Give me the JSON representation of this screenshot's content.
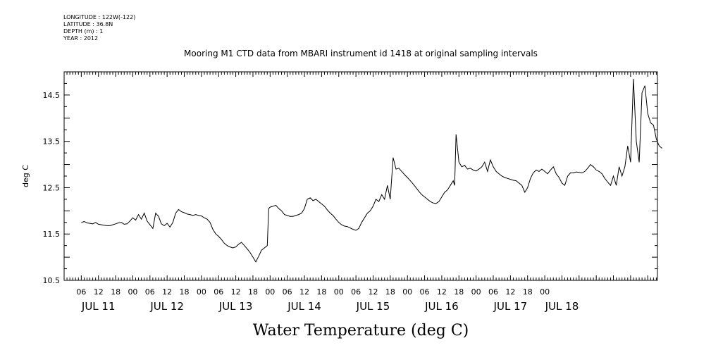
{
  "header": {
    "meta": [
      "LONGITUDE : 122W(-122)",
      "LATITUDE : 36.8N",
      "DEPTH (m) : 1",
      "YEAR : 2012"
    ]
  },
  "chart_data": {
    "type": "line",
    "title": "Mooring M1 CTD data from MBARI instrument id 1418 at original sampling intervals",
    "xlabel": "Water Temperature (deg C)",
    "ylabel": "deg C",
    "ylim": [
      10.5,
      15.0
    ],
    "yticks": [
      "10.5",
      "11.5",
      "12.5",
      "13.5",
      "14.5"
    ],
    "xlim_hours": [
      0,
      165
    ],
    "hour_tick_labels": [
      "06",
      "12",
      "18",
      "00",
      "06",
      "12",
      "18",
      "00",
      "06",
      "12",
      "18",
      "00",
      "06",
      "12",
      "18",
      "00",
      "06",
      "12",
      "18",
      "00",
      "06",
      "12",
      "18",
      "00",
      "06",
      "12",
      "18",
      "00"
    ],
    "day_labels": [
      "JUL 11",
      "JUL 12",
      "JUL 13",
      "JUL 14",
      "JUL 15",
      "JUL 16",
      "JUL 17",
      "JUL 18"
    ],
    "grid": false,
    "series": [
      {
        "color": "#000000",
        "points": [
          [
            0,
            11.75
          ],
          [
            1,
            11.77
          ],
          [
            2,
            11.74
          ],
          [
            3,
            11.73
          ],
          [
            4,
            11.72
          ],
          [
            5,
            11.75
          ],
          [
            6,
            11.71
          ],
          [
            7,
            11.7
          ],
          [
            8,
            11.69
          ],
          [
            9,
            11.68
          ],
          [
            10,
            11.68
          ],
          [
            11,
            11.7
          ],
          [
            12,
            11.72
          ],
          [
            13,
            11.74
          ],
          [
            14,
            11.75
          ],
          [
            15,
            11.71
          ],
          [
            16,
            11.72
          ],
          [
            17,
            11.78
          ],
          [
            18,
            11.85
          ],
          [
            19,
            11.8
          ],
          [
            20,
            11.92
          ],
          [
            21,
            11.82
          ],
          [
            22,
            11.95
          ],
          [
            23,
            11.78
          ],
          [
            24,
            11.7
          ],
          [
            25,
            11.62
          ],
          [
            26,
            11.95
          ],
          [
            27,
            11.88
          ],
          [
            28,
            11.72
          ],
          [
            29,
            11.68
          ],
          [
            30,
            11.73
          ],
          [
            31,
            11.65
          ],
          [
            32,
            11.75
          ],
          [
            33,
            11.95
          ],
          [
            34,
            12.03
          ],
          [
            35,
            11.98
          ],
          [
            36,
            11.96
          ],
          [
            37,
            11.93
          ],
          [
            38,
            11.92
          ],
          [
            39,
            11.9
          ],
          [
            40,
            11.92
          ],
          [
            41,
            11.9
          ],
          [
            42,
            11.89
          ],
          [
            43,
            11.85
          ],
          [
            44,
            11.82
          ],
          [
            45,
            11.75
          ],
          [
            46,
            11.6
          ],
          [
            47,
            11.5
          ],
          [
            48,
            11.45
          ],
          [
            49,
            11.38
          ],
          [
            50,
            11.3
          ],
          [
            51,
            11.25
          ],
          [
            52,
            11.22
          ],
          [
            53,
            11.2
          ],
          [
            54,
            11.22
          ],
          [
            55,
            11.28
          ],
          [
            56,
            11.32
          ],
          [
            57,
            11.25
          ],
          [
            58,
            11.18
          ],
          [
            59,
            11.1
          ],
          [
            60,
            11.0
          ],
          [
            61,
            10.9
          ],
          [
            62,
            11.02
          ],
          [
            63,
            11.15
          ],
          [
            64,
            11.2
          ],
          [
            65,
            11.25
          ],
          [
            65.5,
            12.05
          ],
          [
            66,
            12.08
          ],
          [
            67,
            12.1
          ],
          [
            68,
            12.12
          ],
          [
            69,
            12.05
          ],
          [
            70,
            12.0
          ],
          [
            71,
            11.92
          ],
          [
            72,
            11.9
          ],
          [
            73,
            11.88
          ],
          [
            74,
            11.88
          ],
          [
            75,
            11.9
          ],
          [
            76,
            11.92
          ],
          [
            77,
            11.95
          ],
          [
            78,
            12.05
          ],
          [
            79,
            12.25
          ],
          [
            80,
            12.28
          ],
          [
            81,
            12.22
          ],
          [
            82,
            12.25
          ],
          [
            83,
            12.2
          ],
          [
            84,
            12.15
          ],
          [
            85,
            12.1
          ],
          [
            86,
            12.02
          ],
          [
            87,
            11.95
          ],
          [
            88,
            11.9
          ],
          [
            89,
            11.82
          ],
          [
            90,
            11.75
          ],
          [
            91,
            11.7
          ],
          [
            92,
            11.67
          ],
          [
            93,
            11.66
          ],
          [
            94,
            11.63
          ],
          [
            95,
            11.6
          ],
          [
            96,
            11.58
          ],
          [
            97,
            11.62
          ],
          [
            98,
            11.75
          ],
          [
            99,
            11.85
          ],
          [
            100,
            11.95
          ],
          [
            101,
            12.0
          ],
          [
            102,
            12.1
          ],
          [
            103,
            12.25
          ],
          [
            104,
            12.2
          ],
          [
            105,
            12.35
          ],
          [
            106,
            12.25
          ],
          [
            107,
            12.55
          ],
          [
            108,
            12.25
          ],
          [
            109,
            13.15
          ],
          [
            110,
            12.9
          ],
          [
            111,
            12.92
          ],
          [
            112,
            12.85
          ],
          [
            113,
            12.78
          ],
          [
            114,
            12.72
          ],
          [
            115,
            12.65
          ],
          [
            116,
            12.58
          ],
          [
            117,
            12.5
          ],
          [
            118,
            12.42
          ],
          [
            119,
            12.35
          ],
          [
            120,
            12.3
          ],
          [
            121,
            12.25
          ],
          [
            122,
            12.2
          ],
          [
            123,
            12.17
          ],
          [
            124,
            12.16
          ],
          [
            125,
            12.2
          ],
          [
            126,
            12.3
          ],
          [
            127,
            12.4
          ],
          [
            128,
            12.45
          ],
          [
            129,
            12.55
          ],
          [
            130,
            12.65
          ],
          [
            130.5,
            12.55
          ],
          [
            131,
            13.65
          ],
          [
            132,
            13.05
          ],
          [
            133,
            12.95
          ],
          [
            134,
            12.98
          ],
          [
            135,
            12.9
          ],
          [
            136,
            12.92
          ],
          [
            137,
            12.88
          ],
          [
            138,
            12.86
          ],
          [
            139,
            12.9
          ],
          [
            140,
            12.95
          ],
          [
            141,
            13.05
          ],
          [
            142,
            12.85
          ],
          [
            143,
            13.1
          ],
          [
            144,
            12.95
          ],
          [
            145,
            12.85
          ],
          [
            146,
            12.8
          ],
          [
            147,
            12.75
          ],
          [
            148,
            12.72
          ],
          [
            149,
            12.7
          ],
          [
            150,
            12.68
          ],
          [
            151,
            12.66
          ],
          [
            152,
            12.65
          ],
          [
            153,
            12.6
          ],
          [
            154,
            12.55
          ],
          [
            155,
            12.4
          ],
          [
            156,
            12.5
          ],
          [
            157,
            12.7
          ],
          [
            158,
            12.82
          ],
          [
            159,
            12.88
          ],
          [
            160,
            12.85
          ],
          [
            161,
            12.9
          ],
          [
            162,
            12.85
          ],
          [
            163,
            12.8
          ],
          [
            164,
            12.88
          ],
          [
            165,
            12.95
          ],
          [
            166,
            12.8
          ],
          [
            167,
            12.72
          ],
          [
            168,
            12.6
          ],
          [
            169,
            12.55
          ],
          [
            170,
            12.75
          ],
          [
            171,
            12.82
          ],
          [
            172,
            12.82
          ],
          [
            173,
            12.84
          ],
          [
            174,
            12.83
          ],
          [
            175,
            12.82
          ],
          [
            176,
            12.85
          ],
          [
            177,
            12.92
          ],
          [
            178,
            13.0
          ],
          [
            179,
            12.95
          ],
          [
            180,
            12.88
          ],
          [
            181,
            12.85
          ],
          [
            182,
            12.8
          ],
          [
            183,
            12.7
          ],
          [
            184,
            12.62
          ],
          [
            185,
            12.55
          ],
          [
            186,
            12.75
          ],
          [
            187,
            12.55
          ],
          [
            188,
            12.95
          ],
          [
            189,
            12.75
          ],
          [
            190,
            12.95
          ],
          [
            191,
            13.4
          ],
          [
            192,
            13.05
          ],
          [
            193,
            14.85
          ],
          [
            194,
            13.5
          ],
          [
            195,
            13.05
          ],
          [
            196,
            14.55
          ],
          [
            197,
            14.7
          ],
          [
            198,
            14.1
          ],
          [
            199,
            13.9
          ],
          [
            200,
            13.85
          ],
          [
            201,
            13.55
          ],
          [
            202,
            13.4
          ],
          [
            203,
            13.35
          ]
        ]
      }
    ]
  }
}
